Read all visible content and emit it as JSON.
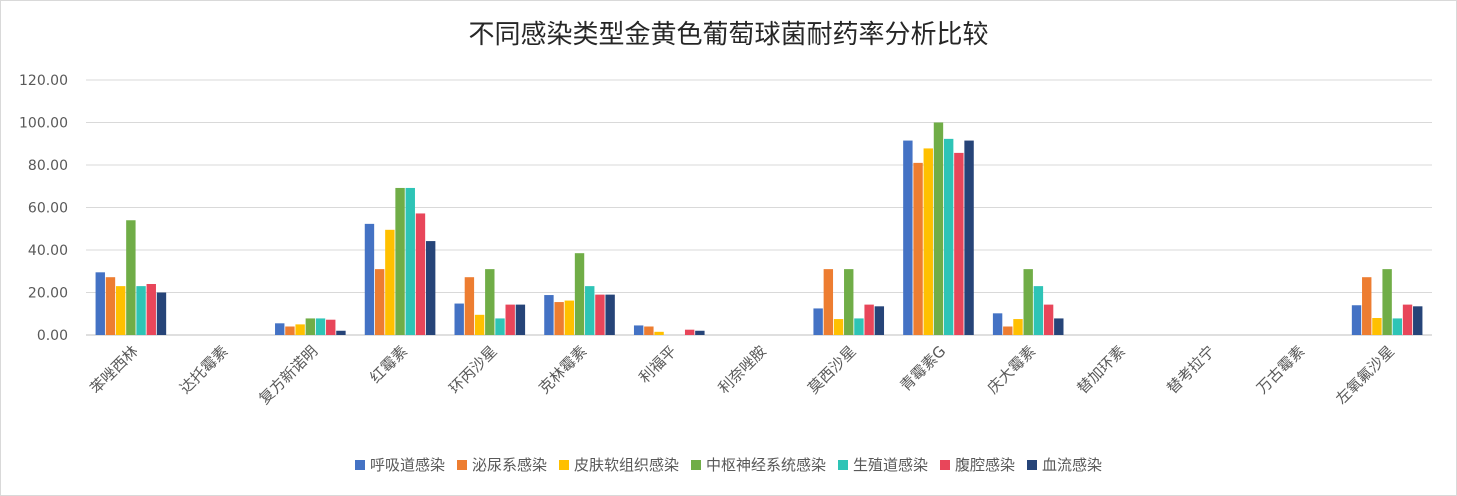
{
  "chart_data": {
    "type": "bar",
    "title": "不同感染类型金黄色葡萄球菌耐药率分析比较",
    "categories": [
      "苯唑西林",
      "达托霉素",
      "复方新诺明",
      "红霉素",
      "环丙沙星",
      "克林霉素",
      "利福平",
      "利奈唑胺",
      "莫西沙星",
      "青霉素G",
      "庆大霉素",
      "替加环素",
      "替考拉宁",
      "万古霉素",
      "左氧氟沙星"
    ],
    "ylim": [
      0,
      120
    ],
    "yticks": [
      "0.00",
      "20.00",
      "40.00",
      "60.00",
      "80.00",
      "100.00",
      "120.00"
    ],
    "grid": true,
    "legend_position": "bottom",
    "series": [
      {
        "name": "呼吸道感染",
        "color": "#4472C4",
        "values": [
          29.5,
          0,
          5.5,
          52.3,
          14.8,
          18.8,
          4.5,
          0,
          12.5,
          91.5,
          10.2,
          0,
          0,
          0,
          14.0
        ]
      },
      {
        "name": "泌尿系感染",
        "color": "#ED7D31",
        "values": [
          27.2,
          0,
          4.0,
          31.0,
          27.2,
          15.5,
          4.0,
          0,
          31.0,
          81.0,
          4.0,
          0,
          0,
          0,
          27.2
        ]
      },
      {
        "name": "皮肤软组织感染",
        "color": "#FFC000",
        "values": [
          23.0,
          0,
          5.0,
          49.5,
          9.5,
          16.2,
          1.5,
          0,
          7.5,
          87.8,
          7.5,
          0,
          0,
          0,
          8.0
        ]
      },
      {
        "name": "中枢神经系统感染",
        "color": "#70AD47",
        "values": [
          54.0,
          0,
          7.8,
          69.2,
          31.0,
          38.5,
          0,
          0,
          31.0,
          100.0,
          31.0,
          0,
          0,
          0,
          31.0
        ]
      },
      {
        "name": "生殖道感染",
        "color": "#2EC4B6",
        "values": [
          23.0,
          0,
          7.8,
          69.2,
          7.8,
          23.0,
          0,
          0,
          7.8,
          92.3,
          23.0,
          0,
          0,
          0,
          7.8
        ]
      },
      {
        "name": "腹腔感染",
        "color": "#E8465A",
        "values": [
          24.0,
          0,
          7.2,
          57.2,
          14.3,
          19.0,
          2.5,
          0,
          14.3,
          85.7,
          14.3,
          0,
          0,
          0,
          14.3
        ]
      },
      {
        "name": "血流感染",
        "color": "#264478",
        "values": [
          20.0,
          0,
          2.0,
          44.2,
          14.3,
          19.0,
          2.0,
          0,
          13.5,
          91.5,
          7.8,
          0,
          0,
          0,
          13.5
        ]
      }
    ]
  }
}
